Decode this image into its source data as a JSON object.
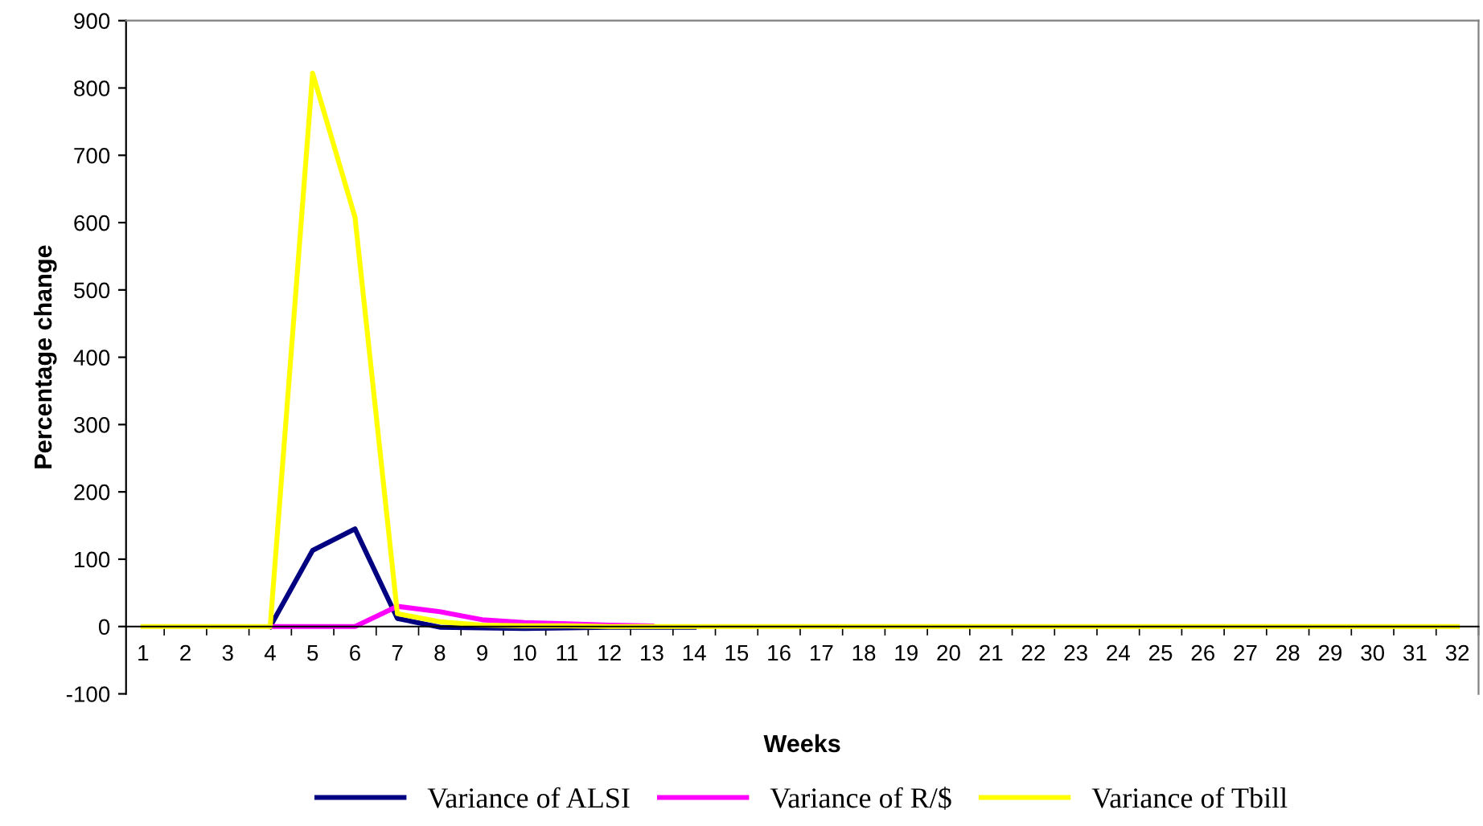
{
  "chart_data": {
    "type": "line",
    "xlabel": "Weeks",
    "ylabel": "Percentage change",
    "categories": [
      "1",
      "2",
      "3",
      "4",
      "5",
      "6",
      "7",
      "8",
      "9",
      "10",
      "11",
      "12",
      "13",
      "14",
      "15",
      "16",
      "17",
      "18",
      "19",
      "20",
      "21",
      "22",
      "23",
      "24",
      "25",
      "26",
      "27",
      "28",
      "29",
      "30",
      "31",
      "32"
    ],
    "series": [
      {
        "name": "Variance of ALSI",
        "color": "#000080",
        "values": [
          null,
          null,
          null,
          0,
          113,
          145,
          12,
          -1,
          -2,
          -3,
          -2,
          -1,
          -1,
          -1,
          null,
          null,
          null,
          null,
          null,
          null,
          null,
          null,
          null,
          null,
          null,
          null,
          null,
          null,
          null,
          null,
          null,
          null
        ]
      },
      {
        "name": "Variance of R/$",
        "color": "#ff00ff",
        "values": [
          null,
          null,
          null,
          0,
          0,
          0,
          30,
          22,
          10,
          6,
          4,
          2,
          1,
          null,
          null,
          null,
          null,
          null,
          null,
          null,
          null,
          null,
          null,
          null,
          null,
          null,
          null,
          null,
          null,
          null,
          null,
          null
        ]
      },
      {
        "name": "Variance of Tbill",
        "color": "#ffff00",
        "values": [
          0,
          0,
          0,
          0,
          822,
          608,
          19,
          7,
          2,
          1,
          1,
          0,
          0,
          0,
          0,
          0,
          0,
          0,
          0,
          0,
          0,
          0,
          0,
          0,
          0,
          0,
          0,
          0,
          0,
          0,
          0,
          0
        ]
      }
    ],
    "ylim": [
      -100,
      900
    ],
    "yticks": [
      -100,
      0,
      100,
      200,
      300,
      400,
      500,
      600,
      700,
      800,
      900
    ],
    "grid": false,
    "legend": "bottom",
    "marker": "none",
    "line_style": "solid"
  }
}
